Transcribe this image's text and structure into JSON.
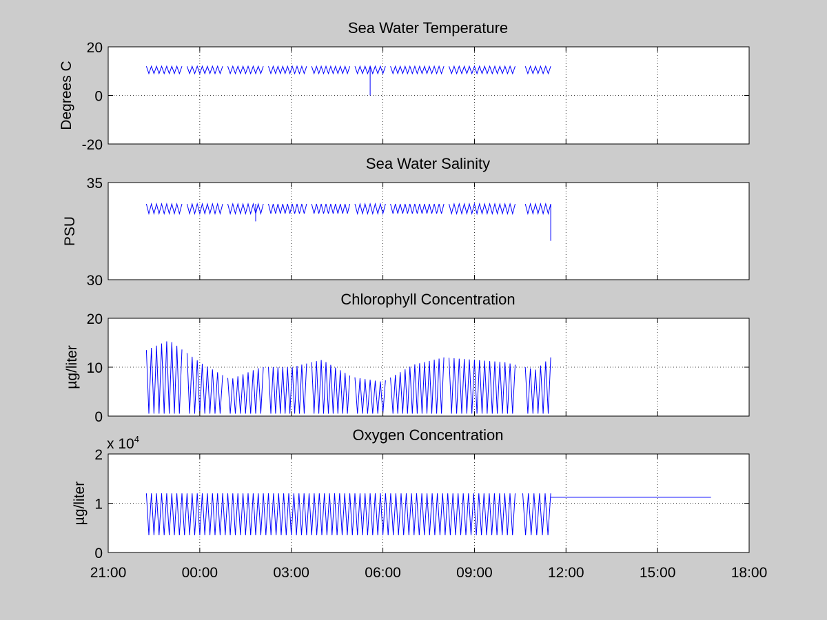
{
  "figure": {
    "background": "#cccccc",
    "axes_background": "#ffffff",
    "line_color": "#0000ff"
  },
  "x_axis": {
    "tick_labels": [
      "21:00",
      "00:00",
      "03:00",
      "06:00",
      "09:00",
      "12:00",
      "15:00",
      "18:00"
    ],
    "range_hours_from_2100": [
      0,
      21
    ]
  },
  "chart_data": [
    {
      "type": "line",
      "title": "Sea Water Temperature",
      "ylabel": "Degrees C",
      "xlabel": "",
      "ylim": [
        -20,
        20
      ],
      "yticks": [
        -20,
        0,
        20
      ],
      "ytick_labels": [
        "-20",
        "0",
        "20"
      ],
      "grid": true,
      "exponent_label": "",
      "series": [
        {
          "color": "#0000ff",
          "x_range": [
            "22:15",
            "11:30"
          ],
          "segments": [
            [
              "22:15",
              "23:25"
            ],
            [
              "23:35",
              "00:45"
            ],
            [
              "00:55",
              "02:05"
            ],
            [
              "02:15",
              "03:30"
            ],
            [
              "03:40",
              "04:55"
            ],
            [
              "05:05",
              "06:05"
            ],
            [
              "06:15",
              "08:00"
            ],
            [
              "08:10",
              "10:20"
            ],
            [
              "10:40",
              "11:30"
            ]
          ],
          "oscillation": {
            "min": 9,
            "max": 12,
            "cycles_per_hour": 6
          },
          "spikes": [
            {
              "x": "05:35",
              "y": 0
            }
          ]
        }
      ]
    },
    {
      "type": "line",
      "title": "Sea Water Salinity",
      "ylabel": "PSU",
      "xlabel": "",
      "ylim": [
        30,
        35
      ],
      "yticks": [
        30,
        35
      ],
      "ytick_labels": [
        "30",
        "35"
      ],
      "grid": true,
      "exponent_label": "",
      "series": [
        {
          "color": "#0000ff",
          "x_range": [
            "22:15",
            "11:30"
          ],
          "segments": [
            [
              "22:15",
              "23:25"
            ],
            [
              "23:35",
              "00:45"
            ],
            [
              "00:55",
              "02:05"
            ],
            [
              "02:15",
              "03:30"
            ],
            [
              "03:40",
              "04:55"
            ],
            [
              "05:05",
              "06:05"
            ],
            [
              "06:15",
              "08:00"
            ],
            [
              "08:10",
              "10:20"
            ],
            [
              "10:40",
              "11:30"
            ]
          ],
          "oscillation": {
            "min": 33.4,
            "max": 33.9,
            "cycles_per_hour": 6
          },
          "spikes": [
            {
              "x": "01:50",
              "y": 33.0
            },
            {
              "x": "11:30",
              "y": 32.0
            }
          ]
        }
      ]
    },
    {
      "type": "line",
      "title": "Chlorophyll Concentration",
      "ylabel": "µg/liter",
      "xlabel": "",
      "ylim": [
        0,
        20
      ],
      "yticks": [
        0,
        10,
        20
      ],
      "ytick_labels": [
        "0",
        "10",
        "20"
      ],
      "grid": true,
      "exponent_label": "",
      "series": [
        {
          "color": "#0000ff",
          "x_range": [
            "22:15",
            "11:30"
          ],
          "segments": [
            [
              "22:15",
              "23:25"
            ],
            [
              "23:35",
              "00:45"
            ],
            [
              "00:55",
              "02:05"
            ],
            [
              "02:15",
              "03:30"
            ],
            [
              "03:40",
              "04:55"
            ],
            [
              "05:05",
              "06:05"
            ],
            [
              "06:15",
              "08:00"
            ],
            [
              "08:10",
              "10:20"
            ],
            [
              "10:40",
              "11:30"
            ]
          ],
          "oscillation": {
            "min": 0.5,
            "max": 12,
            "cycles_per_hour": 6
          },
          "envelope_max": [
            {
              "x": "22:15",
              "y": 13.5
            },
            {
              "x": "23:00",
              "y": 15.5
            },
            {
              "x": "00:00",
              "y": 11
            },
            {
              "x": "01:00",
              "y": 7.5
            },
            {
              "x": "02:00",
              "y": 10
            },
            {
              "x": "03:00",
              "y": 10
            },
            {
              "x": "04:00",
              "y": 11.5
            },
            {
              "x": "05:00",
              "y": 8
            },
            {
              "x": "06:00",
              "y": 7
            },
            {
              "x": "07:00",
              "y": 10.5
            },
            {
              "x": "08:00",
              "y": 12
            },
            {
              "x": "09:00",
              "y": 11.5
            },
            {
              "x": "10:00",
              "y": 11
            },
            {
              "x": "11:00",
              "y": 9.5
            },
            {
              "x": "11:30",
              "y": 12
            }
          ]
        }
      ]
    },
    {
      "type": "line",
      "title": "Oxygen Concentration",
      "ylabel": "µg/liter",
      "xlabel": "",
      "ylim": [
        0,
        2
      ],
      "yticks": [
        0,
        1,
        2
      ],
      "ytick_labels": [
        "0",
        "1",
        "2"
      ],
      "grid": true,
      "exponent_label": "x 10",
      "exponent_power": "4",
      "series": [
        {
          "color": "#0000ff",
          "x_range": [
            "22:15",
            "16:45"
          ],
          "segments": [
            [
              "22:15",
              "00:45"
            ],
            [
              "00:45",
              "05:55"
            ],
            [
              "05:55",
              "10:20"
            ],
            [
              "10:35",
              "11:30"
            ]
          ],
          "oscillation": {
            "min": 0.35,
            "max": 1.2,
            "cycles_per_hour": 6
          },
          "flat_tail": {
            "from": "11:30",
            "to": "16:45",
            "y": 1.12
          }
        }
      ]
    }
  ]
}
